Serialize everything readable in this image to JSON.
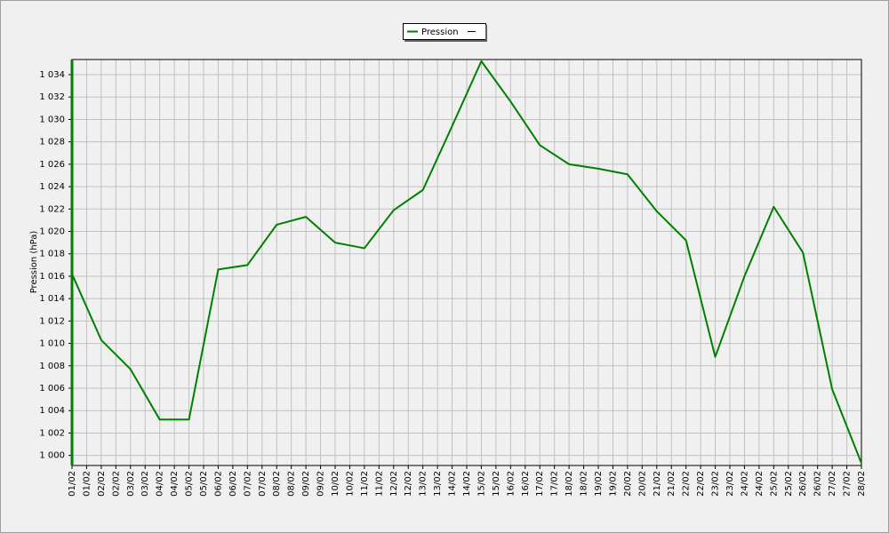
{
  "chart_data": {
    "type": "line",
    "y_label": "Pression (hPa)",
    "series": [
      {
        "name": "Pression",
        "color": "#008000",
        "values": [
          1016.2,
          1010.3,
          1007.7,
          1003.2,
          1003.2,
          1016.6,
          1017.0,
          1020.6,
          1021.3,
          1019.0,
          1018.5,
          1021.9,
          1023.7,
          1029.4,
          1035.2,
          1031.6,
          1027.7,
          1026.0,
          1025.6,
          1025.1,
          1021.8,
          1019.2,
          1008.8,
          1016.0,
          1022.2,
          1018.1,
          1005.9,
          999.3
        ]
      }
    ],
    "x": [
      0,
      1,
      2,
      3,
      4,
      5,
      6,
      7,
      8,
      9,
      10,
      11,
      12,
      13,
      14,
      15,
      16,
      17,
      18,
      19,
      20,
      21,
      22,
      23,
      24,
      25,
      26,
      27
    ],
    "xlim": [
      0,
      27
    ],
    "xticks": [
      {
        "value": 0,
        "label": "01/02"
      },
      {
        "value": 0.5,
        "label": "01/02"
      },
      {
        "value": 1,
        "label": "02/02"
      },
      {
        "value": 1.5,
        "label": "02/02"
      },
      {
        "value": 2,
        "label": "03/02"
      },
      {
        "value": 2.5,
        "label": "03/02"
      },
      {
        "value": 3,
        "label": "04/02"
      },
      {
        "value": 3.5,
        "label": "04/02"
      },
      {
        "value": 4,
        "label": "05/02"
      },
      {
        "value": 4.5,
        "label": "05/02"
      },
      {
        "value": 5,
        "label": "06/02"
      },
      {
        "value": 5.5,
        "label": "06/02"
      },
      {
        "value": 6,
        "label": "07/02"
      },
      {
        "value": 6.5,
        "label": "07/02"
      },
      {
        "value": 7,
        "label": "08/02"
      },
      {
        "value": 7.5,
        "label": "08/02"
      },
      {
        "value": 8,
        "label": "09/02"
      },
      {
        "value": 8.5,
        "label": "09/02"
      },
      {
        "value": 9,
        "label": "10/02"
      },
      {
        "value": 9.5,
        "label": "10/02"
      },
      {
        "value": 10,
        "label": "11/02"
      },
      {
        "value": 10.5,
        "label": "11/02"
      },
      {
        "value": 11,
        "label": "12/02"
      },
      {
        "value": 11.5,
        "label": "12/02"
      },
      {
        "value": 12,
        "label": "13/02"
      },
      {
        "value": 12.5,
        "label": "13/02"
      },
      {
        "value": 13,
        "label": "14/02"
      },
      {
        "value": 13.5,
        "label": "14/02"
      },
      {
        "value": 14,
        "label": "15/02"
      },
      {
        "value": 14.5,
        "label": "15/02"
      },
      {
        "value": 15,
        "label": "16/02"
      },
      {
        "value": 15.5,
        "label": "16/02"
      },
      {
        "value": 16,
        "label": "17/02"
      },
      {
        "value": 16.5,
        "label": "17/02"
      },
      {
        "value": 17,
        "label": "18/02"
      },
      {
        "value": 17.5,
        "label": "18/02"
      },
      {
        "value": 18,
        "label": "19/02"
      },
      {
        "value": 18.5,
        "label": "19/02"
      },
      {
        "value": 19,
        "label": "20/02"
      },
      {
        "value": 19.5,
        "label": "20/02"
      },
      {
        "value": 20,
        "label": "21/02"
      },
      {
        "value": 20.5,
        "label": "21/02"
      },
      {
        "value": 21,
        "label": "22/02"
      },
      {
        "value": 21.5,
        "label": "22/02"
      },
      {
        "value": 22,
        "label": "23/02"
      },
      {
        "value": 22.5,
        "label": "23/02"
      },
      {
        "value": 23,
        "label": "24/02"
      },
      {
        "value": 23.5,
        "label": "24/02"
      },
      {
        "value": 24,
        "label": "25/02"
      },
      {
        "value": 24.5,
        "label": "25/02"
      },
      {
        "value": 25,
        "label": "26/02"
      },
      {
        "value": 25.5,
        "label": "26/02"
      },
      {
        "value": 26,
        "label": "27/02"
      },
      {
        "value": 26.5,
        "label": "27/02"
      },
      {
        "value": 27,
        "label": "28/02"
      }
    ],
    "ylim": [
      999.1,
      1035.35
    ],
    "yticks": [
      {
        "value": 1000,
        "label": "1 000"
      },
      {
        "value": 1002,
        "label": "1 002"
      },
      {
        "value": 1004,
        "label": "1 004"
      },
      {
        "value": 1006,
        "label": "1 006"
      },
      {
        "value": 1008,
        "label": "1 008"
      },
      {
        "value": 1010,
        "label": "1 010"
      },
      {
        "value": 1012,
        "label": "1 012"
      },
      {
        "value": 1014,
        "label": "1 014"
      },
      {
        "value": 1016,
        "label": "1 016"
      },
      {
        "value": 1018,
        "label": "1 018"
      },
      {
        "value": 1020,
        "label": "1 020"
      },
      {
        "value": 1022,
        "label": "1 022"
      },
      {
        "value": 1024,
        "label": "1 024"
      },
      {
        "value": 1026,
        "label": "1 026"
      },
      {
        "value": 1028,
        "label": "1 028"
      },
      {
        "value": 1030,
        "label": "1 030"
      },
      {
        "value": 1032,
        "label": "1 032"
      },
      {
        "value": 1034,
        "label": "1 034"
      }
    ],
    "grid": true
  }
}
